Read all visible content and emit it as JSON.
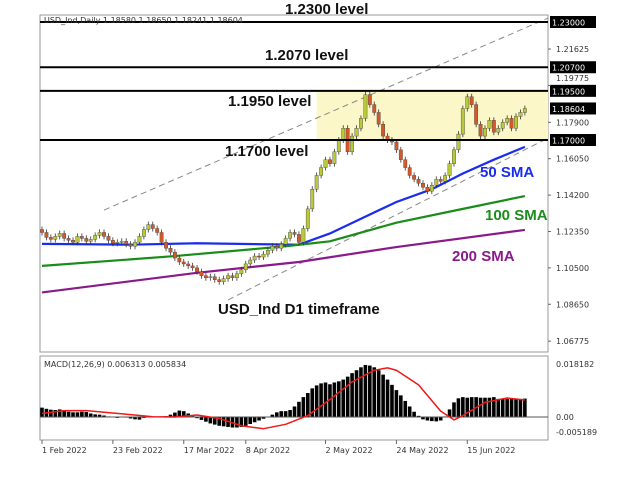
{
  "chart_data": {
    "type": "candlestick",
    "title": "USD_Ind,Daily  1.18580 1.18650 1.18241 1.18604",
    "ylim": [
      1.063,
      1.234
    ],
    "colors": {
      "bull": "#b8c93a",
      "bear": "#d4582a",
      "sma50": "#1a2cf0",
      "sma100": "#1a8c1a",
      "sma200": "#8a1a8a",
      "box": "#fbf7c8",
      "macd_signal": "#f01818",
      "macd_hist": "#000000"
    },
    "closes": [
      1.123,
      1.1205,
      1.1195,
      1.121,
      1.1225,
      1.12,
      1.119,
      1.118,
      1.121,
      1.12,
      1.1185,
      1.1195,
      1.1215,
      1.123,
      1.121,
      1.119,
      1.1175,
      1.118,
      1.1185,
      1.117,
      1.116,
      1.118,
      1.121,
      1.1245,
      1.127,
      1.125,
      1.123,
      1.118,
      1.115,
      1.113,
      1.11,
      1.108,
      1.107,
      1.106,
      1.105,
      1.103,
      1.101,
      1.1,
      1.1005,
      1.099,
      1.098,
      1.0995,
      1.101,
      1.1,
      1.102,
      1.104,
      1.107,
      1.109,
      1.111,
      1.1105,
      1.112,
      1.114,
      1.116,
      1.115,
      1.117,
      1.12,
      1.123,
      1.122,
      1.118,
      1.125,
      1.135,
      1.145,
      1.152,
      1.156,
      1.16,
      1.158,
      1.164,
      1.17,
      1.176,
      1.164,
      1.172,
      1.176,
      1.181,
      1.193,
      1.188,
      1.184,
      1.178,
      1.172,
      1.17,
      1.169,
      1.165,
      1.16,
      1.156,
      1.152,
      1.15,
      1.148,
      1.146,
      1.144,
      1.147,
      1.15,
      1.149,
      1.152,
      1.158,
      1.165,
      1.173,
      1.186,
      1.192,
      1.188,
      1.178,
      1.172,
      1.176,
      1.18,
      1.174,
      1.176,
      1.179,
      1.181,
      1.176,
      1.182,
      1.184,
      1.186
    ],
    "sma": [
      {
        "name": "50 SMA",
        "points": [
          [
            0,
            1.1172
          ],
          [
            20,
            1.1168
          ],
          [
            35,
            1.1175
          ],
          [
            50,
            1.117
          ],
          [
            58,
            1.1168
          ],
          [
            65,
            1.1225
          ],
          [
            72,
            1.13
          ],
          [
            80,
            1.1385
          ],
          [
            88,
            1.145
          ],
          [
            95,
            1.153
          ],
          [
            102,
            1.16
          ],
          [
            109,
            1.1665
          ]
        ]
      },
      {
        "name": "100 SMA",
        "points": [
          [
            0,
            1.106
          ],
          [
            30,
            1.111
          ],
          [
            55,
            1.116
          ],
          [
            65,
            1.1185
          ],
          [
            80,
            1.128
          ],
          [
            95,
            1.135
          ],
          [
            109,
            1.1415
          ]
        ]
      },
      {
        "name": "200 SMA",
        "points": [
          [
            0,
            1.0925
          ],
          [
            35,
            1.1025
          ],
          [
            58,
            1.108
          ],
          [
            80,
            1.1156
          ],
          [
            109,
            1.1243
          ]
        ]
      }
    ],
    "levels": [
      {
        "price": 1.23,
        "label": "1.2300 level",
        "axis_label": "1.23000"
      },
      {
        "price": 1.207,
        "label": "1.2070 level",
        "axis_label": "1.20700"
      },
      {
        "price": 1.195,
        "label": "1.1950 level",
        "axis_label": "1.19500"
      },
      {
        "price": 1.17,
        "label": "1.1700 level",
        "axis_label": "1.17000"
      }
    ],
    "current_price_label": "1.18604",
    "current_price": 1.18604,
    "range_box": {
      "from_bar": 62,
      "low": 1.17,
      "high": 1.195
    },
    "trendlines": [
      {
        "from": [
          14,
          1.1344
        ],
        "to": [
          115,
          1.232
        ]
      },
      {
        "from": [
          42,
          1.0887
        ],
        "to": [
          115,
          1.171
        ]
      }
    ],
    "y_ticks": [
      "1.21625",
      "1.19775",
      "1.17900",
      "1.16050",
      "1.14200",
      "1.12350",
      "1.10500",
      "1.08650",
      "1.06775"
    ],
    "x_ticks": [
      {
        "bar": 0,
        "label": "1 Feb 2022"
      },
      {
        "bar": 16,
        "label": "23 Feb 2022"
      },
      {
        "bar": 32,
        "label": "17 Mar 2022"
      },
      {
        "bar": 46,
        "label": "8 Apr 2022"
      },
      {
        "bar": 64,
        "label": "2 May 2022"
      },
      {
        "bar": 80,
        "label": "24 May 2022"
      },
      {
        "bar": 96,
        "label": "15 Jun 2022"
      }
    ],
    "annotation": "USD_Ind D1 timeframe",
    "macd": {
      "title": "MACD(12,26,9) 0.006313 0.005834",
      "ylim": [
        -0.0065,
        0.0195
      ],
      "y_ticks": [
        {
          "v": 0.018182,
          "label": "0.018182"
        },
        {
          "v": 0.0,
          "label": "0.00"
        },
        {
          "v": -0.005189,
          "label": "-0.005189"
        }
      ],
      "histogram": [
        0.0032,
        0.0028,
        0.0025,
        0.0024,
        0.0026,
        0.0022,
        0.0018,
        0.0016,
        0.0016,
        0.0018,
        0.0017,
        0.0012,
        0.0009,
        0.0008,
        0.0005,
        0.0002,
        0.0,
        -0.0003,
        0.0001,
        -0.0002,
        -0.0005,
        -0.0008,
        -0.0009,
        -0.0003,
        0.0,
        0.0001,
        0.0001,
        0.0002,
        0.0003,
        0.0008,
        0.0015,
        0.0022,
        0.002,
        0.0012,
        0.0003,
        -0.0004,
        -0.001,
        -0.0016,
        -0.0022,
        -0.0026,
        -0.003,
        -0.0032,
        -0.0034,
        -0.0036,
        -0.0036,
        -0.0034,
        -0.003,
        -0.0024,
        -0.0018,
        -0.0012,
        -0.0006,
        0.0,
        0.0008,
        0.0016,
        0.002,
        0.002,
        0.0024,
        0.0036,
        0.0052,
        0.0068,
        0.0082,
        0.0098,
        0.0108,
        0.0115,
        0.0118,
        0.0112,
        0.0118,
        0.0122,
        0.0128,
        0.0138,
        0.015,
        0.016,
        0.017,
        0.0178,
        0.0176,
        0.017,
        0.016,
        0.0145,
        0.0128,
        0.011,
        0.0092,
        0.0074,
        0.0055,
        0.0036,
        0.0018,
        0.0004,
        -0.0008,
        -0.0012,
        -0.0014,
        -0.0015,
        -0.0012,
        0.0002,
        0.0026,
        0.005,
        0.0064,
        0.0068,
        0.0066,
        0.0068,
        0.0068,
        0.0066,
        0.0066,
        0.0066,
        0.0068,
        0.0062,
        0.0062,
        0.0062,
        0.0062,
        0.006,
        0.0062,
        0.0063
      ],
      "signal": [
        [
          0,
          0.0012
        ],
        [
          5,
          0.0022
        ],
        [
          10,
          0.0022
        ],
        [
          15,
          0.0015
        ],
        [
          20,
          0.0008
        ],
        [
          25,
          0.0001
        ],
        [
          30,
          0.0
        ],
        [
          35,
          0.0007
        ],
        [
          40,
          -0.0005
        ],
        [
          45,
          -0.003
        ],
        [
          50,
          -0.004
        ],
        [
          55,
          -0.0025
        ],
        [
          60,
          0.0005
        ],
        [
          65,
          0.006
        ],
        [
          70,
          0.012
        ],
        [
          75,
          0.016
        ],
        [
          78,
          0.0168
        ],
        [
          80,
          0.016
        ],
        [
          85,
          0.011
        ],
        [
          90,
          0.002
        ],
        [
          93,
          -0.001
        ],
        [
          95,
          0.0005
        ],
        [
          100,
          0.005
        ],
        [
          105,
          0.0065
        ],
        [
          109,
          0.0058
        ]
      ]
    }
  }
}
